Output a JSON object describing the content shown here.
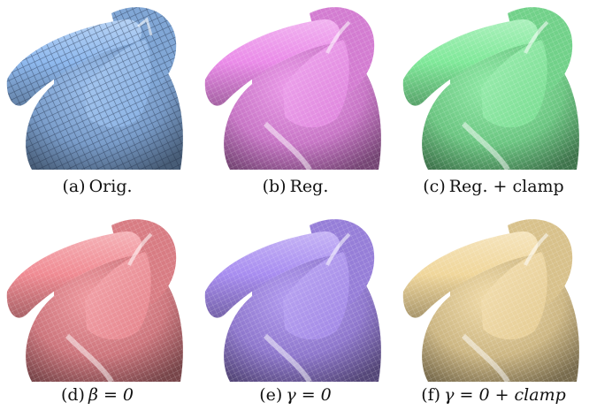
{
  "panels": [
    {
      "label": "(a)",
      "caption": "Orig.",
      "color": "#8fb9ee",
      "style": "voxel"
    },
    {
      "label": "(b)",
      "caption": "Reg.",
      "color": "#ea8ae8",
      "style": "mesh"
    },
    {
      "label": "(c)",
      "caption": "Reg. + clamp",
      "color": "#7ee898",
      "style": "mesh"
    },
    {
      "label": "(d)",
      "caption": "β = 0",
      "color": "#f08a92",
      "style": "mesh"
    },
    {
      "label": "(e)",
      "caption": "γ = 0",
      "color": "#a78cf0",
      "style": "mesh"
    },
    {
      "label": "(f)",
      "caption": "γ = 0 + clamp",
      "color": "#f0d69a",
      "style": "mesh"
    }
  ]
}
